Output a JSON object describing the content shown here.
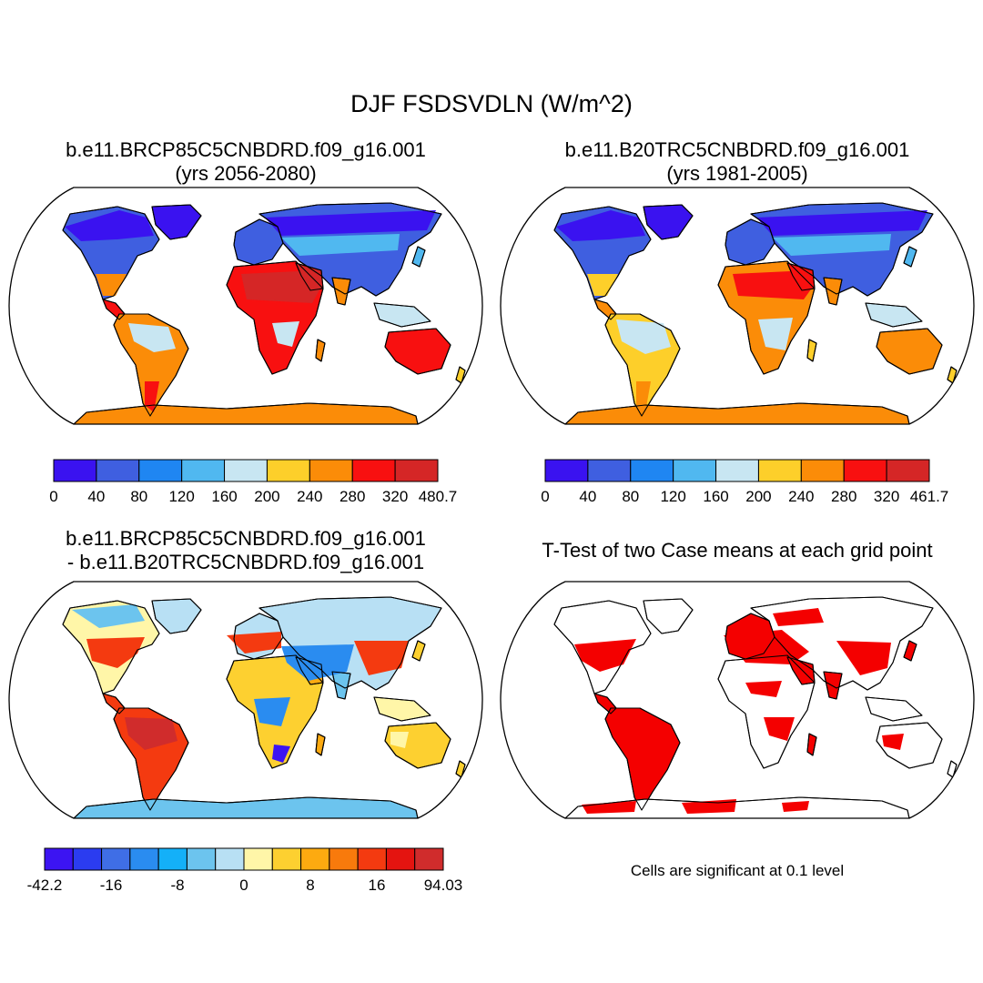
{
  "title": "DJF FSDSVDLN (W/m^2)",
  "panels": [
    {
      "id": "future",
      "title_line1": "b.e11.BRCP85C5CNBDRD.f09_g16.001",
      "title_line2": "(yrs 2056-2080)",
      "colorbar": {
        "colors": [
          "#3a12f0",
          "#3f5fe0",
          "#1f86f2",
          "#50b8f0",
          "#c8e6f2",
          "#fdcf2a",
          "#fb8c08",
          "#f81010",
          "#d52626"
        ],
        "labels": [
          "0",
          "40",
          "80",
          "120",
          "160",
          "200",
          "240",
          "280",
          "320",
          "480.7"
        ]
      }
    },
    {
      "id": "historical",
      "title_line1": "b.e11.B20TRC5CNBDRD.f09_g16.001",
      "title_line2": "(yrs 1981-2005)",
      "colorbar": {
        "colors": [
          "#3a12f0",
          "#3f5fe0",
          "#1f86f2",
          "#50b8f0",
          "#c8e6f2",
          "#fdcf2a",
          "#fb8c08",
          "#f81010",
          "#d52626"
        ],
        "labels": [
          "0",
          "40",
          "80",
          "120",
          "160",
          "200",
          "240",
          "280",
          "320",
          "461.7"
        ]
      }
    },
    {
      "id": "difference",
      "title_line1": "b.e11.BRCP85C5CNBDRD.f09_g16.001",
      "title_line2": "- b.e11.B20TRC5CNBDRD.f09_g16.001",
      "colorbar": {
        "colors": [
          "#3c14f2",
          "#2b3cf0",
          "#3f6ee6",
          "#2a8cf0",
          "#14b0f8",
          "#6cc4ee",
          "#b8e0f4",
          "#fff6a8",
          "#fdd030",
          "#fdaa10",
          "#f87a0c",
          "#f43a10",
          "#e41410",
          "#d02c2c"
        ],
        "labels": [
          "-42.2",
          "-16",
          "-8",
          "0",
          "8",
          "16",
          "94.03"
        ]
      }
    },
    {
      "id": "ttest",
      "title_line1": "T-Test of two Case means at each grid point",
      "note": "Cells are significant at 0.1 level"
    }
  ]
}
